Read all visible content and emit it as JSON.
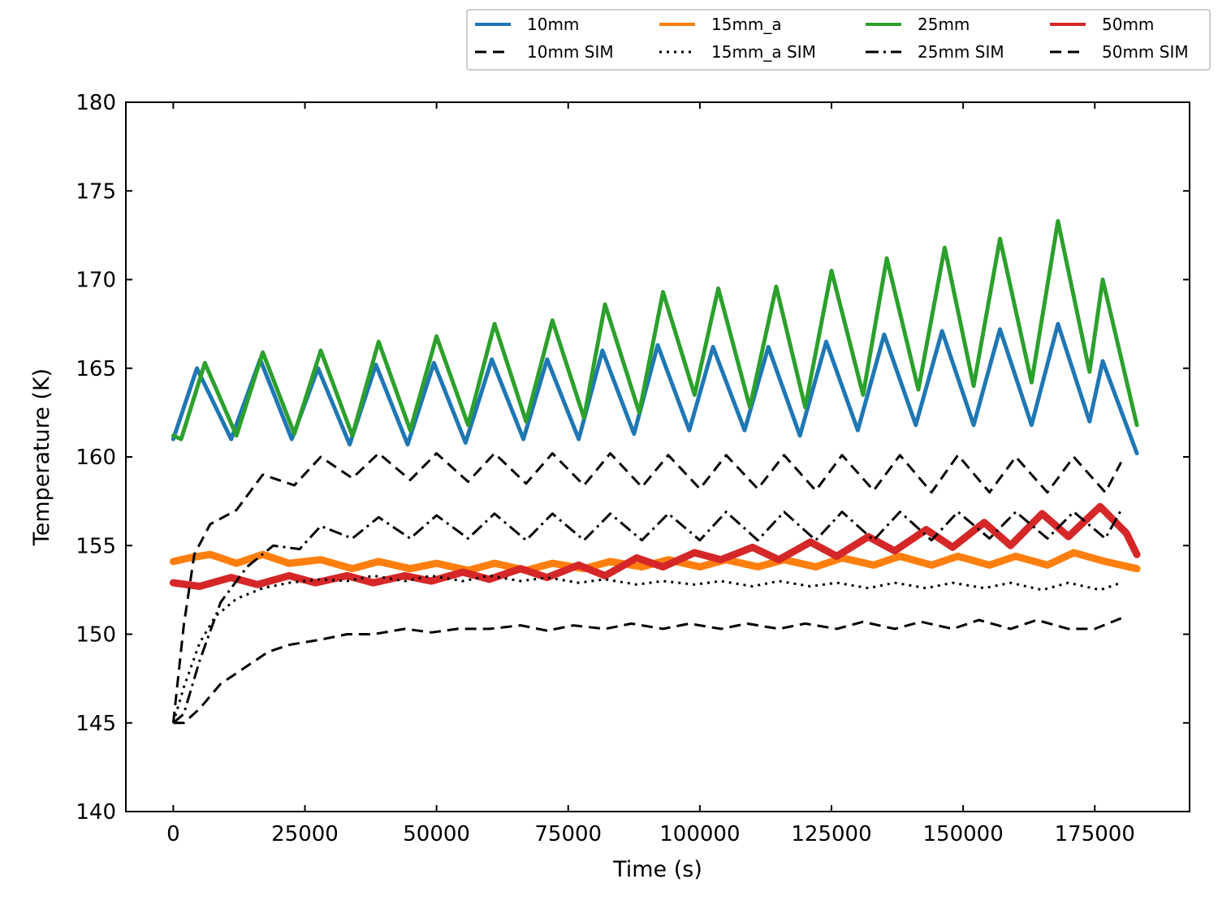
{
  "chart_data": {
    "type": "line",
    "title": "",
    "xlabel": "Time (s)",
    "ylabel": "Temperature (K)",
    "xlim": [
      -9000,
      193000
    ],
    "ylim": [
      140,
      180
    ],
    "xticks": [
      0,
      25000,
      50000,
      75000,
      100000,
      125000,
      150000,
      175000
    ],
    "yticks": [
      140,
      145,
      150,
      155,
      160,
      165,
      170,
      175,
      180
    ],
    "grid": false,
    "legend_position": "top-right, above plot",
    "legend_columns": 4,
    "series": [
      {
        "name": "10mm",
        "color": "#1f77b4",
        "style": "solid",
        "width": 5,
        "x": [
          0,
          4500,
          11000,
          16500,
          22500,
          27500,
          33500,
          38500,
          44500,
          49500,
          55500,
          60500,
          66500,
          71000,
          77000,
          81500,
          87500,
          92000,
          98000,
          102500,
          108500,
          113000,
          119000,
          124000,
          130000,
          135000,
          141000,
          146000,
          152000,
          157000,
          163000,
          168000,
          174000,
          176500,
          183000
        ],
        "y": [
          161.0,
          165.0,
          161.0,
          165.5,
          161.0,
          165.0,
          160.7,
          165.2,
          160.7,
          165.3,
          160.8,
          165.5,
          161.0,
          165.5,
          161.0,
          166.0,
          161.3,
          166.3,
          161.5,
          166.2,
          161.5,
          166.2,
          161.2,
          166.5,
          161.5,
          166.9,
          161.8,
          167.1,
          161.8,
          167.2,
          161.8,
          167.5,
          162.0,
          165.4,
          160.2
        ]
      },
      {
        "name": "15mm_a",
        "color": "#ff7f0e",
        "style": "solid",
        "width": 9,
        "x": [
          0,
          3000,
          7000,
          12000,
          17000,
          22000,
          28000,
          34000,
          39000,
          45000,
          50000,
          56000,
          61000,
          67000,
          72000,
          78000,
          83000,
          89000,
          94000,
          100000,
          105000,
          111000,
          116000,
          122000,
          127000,
          133000,
          138000,
          144000,
          149000,
          155000,
          160000,
          166000,
          171000,
          177000,
          183000
        ],
        "y": [
          154.1,
          154.3,
          154.5,
          154.0,
          154.5,
          154.0,
          154.2,
          153.7,
          154.1,
          153.7,
          154.0,
          153.6,
          154.0,
          153.6,
          154.0,
          153.7,
          154.1,
          153.8,
          154.2,
          153.8,
          154.2,
          153.8,
          154.2,
          153.8,
          154.3,
          153.9,
          154.4,
          153.9,
          154.4,
          153.9,
          154.4,
          153.9,
          154.6,
          154.1,
          153.7
        ]
      },
      {
        "name": "25mm",
        "color": "#2ca02c",
        "style": "solid",
        "width": 5,
        "x": [
          0,
          1500,
          6000,
          12000,
          17000,
          23000,
          28000,
          34000,
          39000,
          45000,
          50000,
          56000,
          61000,
          67000,
          72000,
          78000,
          82000,
          88500,
          93000,
          99000,
          103500,
          109500,
          114500,
          120000,
          125000,
          131000,
          135500,
          141500,
          146500,
          152000,
          157000,
          163000,
          168000,
          174000,
          176500,
          183000
        ],
        "y": [
          161.2,
          161.0,
          165.3,
          161.2,
          165.9,
          161.3,
          166.0,
          161.2,
          166.5,
          161.5,
          166.8,
          161.8,
          167.5,
          162.0,
          167.7,
          162.2,
          168.6,
          162.5,
          169.3,
          163.5,
          169.5,
          162.8,
          169.6,
          162.8,
          170.5,
          163.5,
          171.2,
          163.8,
          171.8,
          164.0,
          172.3,
          164.2,
          173.3,
          164.8,
          170.0,
          161.8
        ]
      },
      {
        "name": "50mm",
        "color": "#d62728",
        "style": "solid",
        "width": 9,
        "x": [
          0,
          5000,
          11000,
          16000,
          22000,
          27000,
          33000,
          38000,
          44000,
          49000,
          55000,
          60000,
          66000,
          71000,
          77000,
          82000,
          88000,
          93000,
          99000,
          104000,
          110000,
          115000,
          121000,
          126000,
          132000,
          137000,
          143000,
          148000,
          154000,
          159000,
          165000,
          170000,
          176000,
          181000,
          183000
        ],
        "y": [
          152.9,
          152.7,
          153.2,
          152.8,
          153.3,
          152.9,
          153.3,
          152.9,
          153.3,
          153.0,
          153.5,
          153.1,
          153.7,
          153.2,
          153.9,
          153.3,
          154.3,
          153.8,
          154.6,
          154.2,
          154.9,
          154.2,
          155.2,
          154.4,
          155.5,
          154.7,
          155.9,
          154.9,
          156.3,
          155.0,
          156.8,
          155.5,
          157.2,
          155.7,
          154.5
        ]
      },
      {
        "name": "10mm SIM",
        "color": "#000000",
        "style": "dashed",
        "width": 3,
        "x": [
          0,
          2000,
          5000,
          9000,
          14000,
          18000,
          22000,
          28000,
          33000,
          38000,
          44000,
          49000,
          54000,
          60000,
          66000,
          71000,
          76000,
          82000,
          87000,
          93000,
          98000,
          104000,
          109000,
          115000,
          120000,
          126000,
          131000,
          137000,
          142000,
          148000,
          153000,
          159000,
          164000,
          170000,
          175000,
          180000
        ],
        "y": [
          145.0,
          145.0,
          145.8,
          147.2,
          148.2,
          149.0,
          149.4,
          149.7,
          150.0,
          150.0,
          150.3,
          150.1,
          150.3,
          150.3,
          150.5,
          150.2,
          150.5,
          150.3,
          150.6,
          150.3,
          150.6,
          150.3,
          150.6,
          150.3,
          150.6,
          150.3,
          150.7,
          150.3,
          150.7,
          150.3,
          150.8,
          150.3,
          150.8,
          150.3,
          150.3,
          150.9
        ]
      },
      {
        "name": "15mm_a SIM",
        "color": "#000000",
        "style": "dotted",
        "width": 3,
        "x": [
          0,
          2000,
          5000,
          8000,
          12000,
          17000,
          22000,
          28000,
          33000,
          38000,
          44000,
          49000,
          55000,
          60000,
          66000,
          71000,
          77000,
          82000,
          88000,
          93000,
          99000,
          104000,
          110000,
          115000,
          121000,
          126000,
          132000,
          137000,
          143000,
          148000,
          154000,
          159000,
          165000,
          170000,
          176000,
          180000
        ],
        "y": [
          145.0,
          147.0,
          149.5,
          151.0,
          152.0,
          152.6,
          152.9,
          153.1,
          153.0,
          153.3,
          153.0,
          153.3,
          153.0,
          153.3,
          153.0,
          153.2,
          152.9,
          153.1,
          152.8,
          153.0,
          152.8,
          153.0,
          152.7,
          153.0,
          152.7,
          152.9,
          152.6,
          152.9,
          152.6,
          152.9,
          152.6,
          152.9,
          152.5,
          152.9,
          152.5,
          152.9
        ]
      },
      {
        "name": "25mm SIM",
        "color": "#000000",
        "style": "dashdot",
        "width": 3,
        "x": [
          0,
          2000,
          5000,
          9000,
          14000,
          19000,
          24000,
          28000,
          34000,
          39000,
          45000,
          50000,
          56000,
          61000,
          67000,
          72000,
          78000,
          83000,
          89000,
          94000,
          100000,
          105000,
          111000,
          116000,
          122000,
          127000,
          133000,
          138000,
          144000,
          149000,
          155000,
          160000,
          166000,
          171000,
          177000,
          180000
        ],
        "y": [
          145.0,
          145.5,
          148.5,
          151.8,
          153.8,
          155.0,
          154.8,
          156.1,
          155.4,
          156.6,
          155.4,
          156.7,
          155.4,
          156.8,
          155.3,
          156.8,
          155.3,
          156.8,
          155.3,
          156.8,
          155.3,
          156.9,
          155.3,
          156.9,
          155.3,
          156.9,
          155.3,
          156.9,
          155.3,
          156.9,
          155.4,
          156.9,
          155.4,
          156.9,
          155.4,
          157.0
        ]
      },
      {
        "name": "50mm SIM",
        "color": "#000000",
        "style": "dashed",
        "width": 3,
        "x": [
          0,
          2000,
          4000,
          7000,
          12000,
          17000,
          23000,
          28000,
          34000,
          39000,
          45000,
          50000,
          56000,
          61000,
          67000,
          72000,
          78000,
          83000,
          89000,
          94000,
          100000,
          105000,
          111000,
          116000,
          122000,
          127000,
          133000,
          138000,
          144000,
          149000,
          155000,
          160000,
          166000,
          171000,
          177000,
          180000
        ],
        "y": [
          145.0,
          150.5,
          154.5,
          156.2,
          157.0,
          159.0,
          158.4,
          160.0,
          158.8,
          160.2,
          158.7,
          160.2,
          158.6,
          160.2,
          158.5,
          160.2,
          158.4,
          160.2,
          158.3,
          160.1,
          158.2,
          160.1,
          158.2,
          160.1,
          158.1,
          160.1,
          158.1,
          160.1,
          158.0,
          160.1,
          158.0,
          160.0,
          158.0,
          160.0,
          158.0,
          159.7
        ]
      }
    ]
  }
}
